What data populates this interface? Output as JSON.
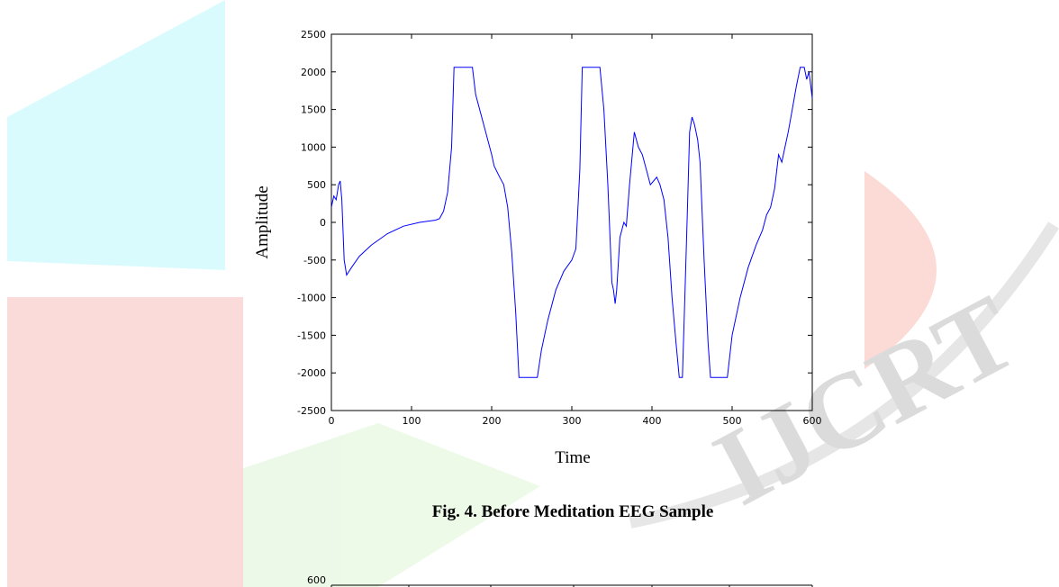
{
  "watermark": "IJCRT",
  "chart_data": [
    {
      "type": "line",
      "caption": "Fig. 4.  Before Meditation EEG Sample",
      "x_label": "Time",
      "y_label": "Amplitude",
      "xlim": [
        0,
        600
      ],
      "ylim": [
        -2500,
        2500
      ],
      "xticks": [
        0,
        100,
        200,
        300,
        400,
        500,
        600
      ],
      "yticks": [
        -2500,
        -2000,
        -1500,
        -1000,
        -500,
        0,
        500,
        1000,
        1500,
        2000,
        2500
      ],
      "series": [
        {
          "color": "#0000ff",
          "x": [
            0,
            3,
            6,
            9,
            11,
            13,
            16,
            19,
            25,
            35,
            50,
            70,
            90,
            110,
            130,
            135,
            140,
            145,
            150,
            153,
            176,
            180,
            190,
            200,
            203,
            210,
            215,
            220,
            225,
            230,
            234,
            257,
            262,
            270,
            280,
            290,
            300,
            305,
            310,
            313,
            335,
            340,
            345,
            350,
            352,
            354,
            356,
            360,
            365,
            368,
            372,
            378,
            383,
            388,
            393,
            398,
            402,
            406,
            410,
            415,
            420,
            425,
            430,
            434,
            438,
            441,
            444,
            447,
            450,
            453,
            457,
            460,
            465,
            470,
            473,
            494,
            500,
            510,
            520,
            530,
            538,
            543,
            548,
            553,
            558,
            562,
            566,
            570,
            575,
            580,
            585,
            590,
            593,
            596,
            600
          ],
          "values": [
            200,
            350,
            300,
            500,
            550,
            300,
            -500,
            -700,
            -600,
            -450,
            -300,
            -150,
            -50,
            0,
            30,
            50,
            150,
            400,
            1000,
            2060,
            2060,
            1700,
            1300,
            900,
            750,
            600,
            500,
            200,
            -400,
            -1200,
            -2060,
            -2060,
            -1700,
            -1300,
            -900,
            -650,
            -500,
            -350,
            700,
            2060,
            2060,
            1500,
            500,
            -800,
            -900,
            -1080,
            -900,
            -200,
            0,
            -50,
            500,
            1200,
            1000,
            900,
            700,
            500,
            550,
            600,
            500,
            300,
            -200,
            -1000,
            -1600,
            -2060,
            -2060,
            -1000,
            100,
            1200,
            1400,
            1300,
            1100,
            800,
            -500,
            -1600,
            -2060,
            -2060,
            -1500,
            -1000,
            -600,
            -300,
            -100,
            100,
            200,
            450,
            900,
            800,
            1000,
            1200,
            1500,
            1800,
            2060,
            2060,
            1900,
            2000,
            1650
          ]
        }
      ]
    },
    {
      "type": "line",
      "yticks": [
        600
      ]
    }
  ]
}
